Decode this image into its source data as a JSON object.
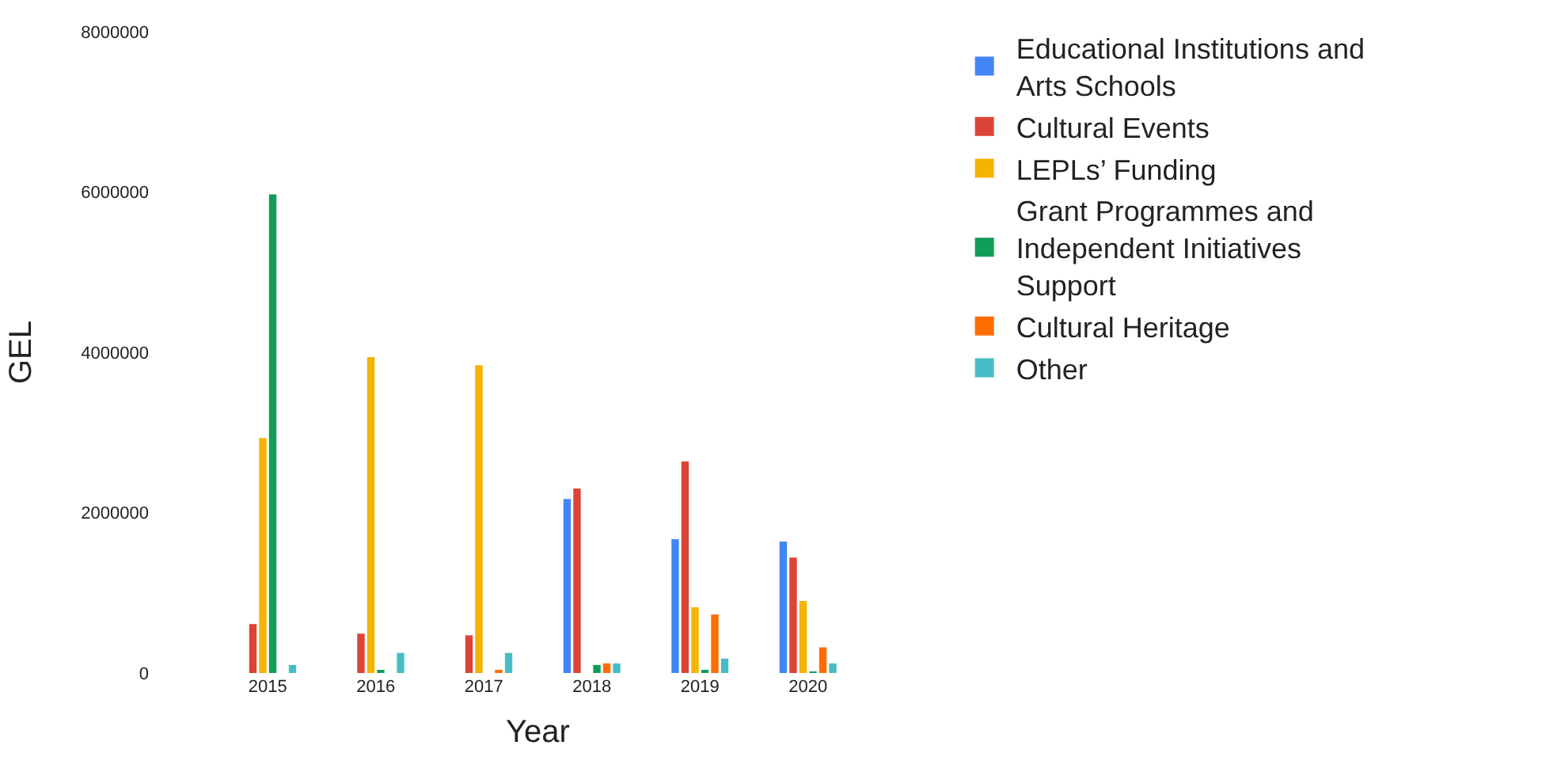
{
  "chart_data": {
    "type": "bar",
    "xlabel": "Year",
    "ylabel": "GEL",
    "categories": [
      "2015",
      "2016",
      "2017",
      "2018",
      "2019",
      "2020"
    ],
    "series": [
      {
        "name": "Educational Institutions and Arts Schools",
        "color": "#4285f4",
        "values": [
          0,
          0,
          0,
          2170000,
          1670000,
          1640000
        ]
      },
      {
        "name": "Cultural Events",
        "color": "#db4437",
        "values": [
          610000,
          490000,
          470000,
          2300000,
          2640000,
          1440000
        ]
      },
      {
        "name": "LEPLs’ Funding",
        "color": "#f4b400",
        "values": [
          2930000,
          3940000,
          3840000,
          0,
          820000,
          900000
        ]
      },
      {
        "name": "Grant Programmes and Independent Initiatives Support",
        "color": "#0f9d58",
        "values": [
          5970000,
          20000,
          0,
          100000,
          30000,
          10000
        ]
      },
      {
        "name": "Cultural Heritage",
        "color": "#ff6d01",
        "values": [
          0,
          0,
          30000,
          120000,
          730000,
          320000
        ]
      },
      {
        "name": "Other",
        "color": "#46bdc6",
        "values": [
          100000,
          250000,
          250000,
          120000,
          180000,
          120000
        ]
      }
    ],
    "ylim": [
      0,
      8000000
    ],
    "yticks": [
      0,
      2000000,
      4000000,
      6000000,
      8000000
    ],
    "legend": "right"
  }
}
